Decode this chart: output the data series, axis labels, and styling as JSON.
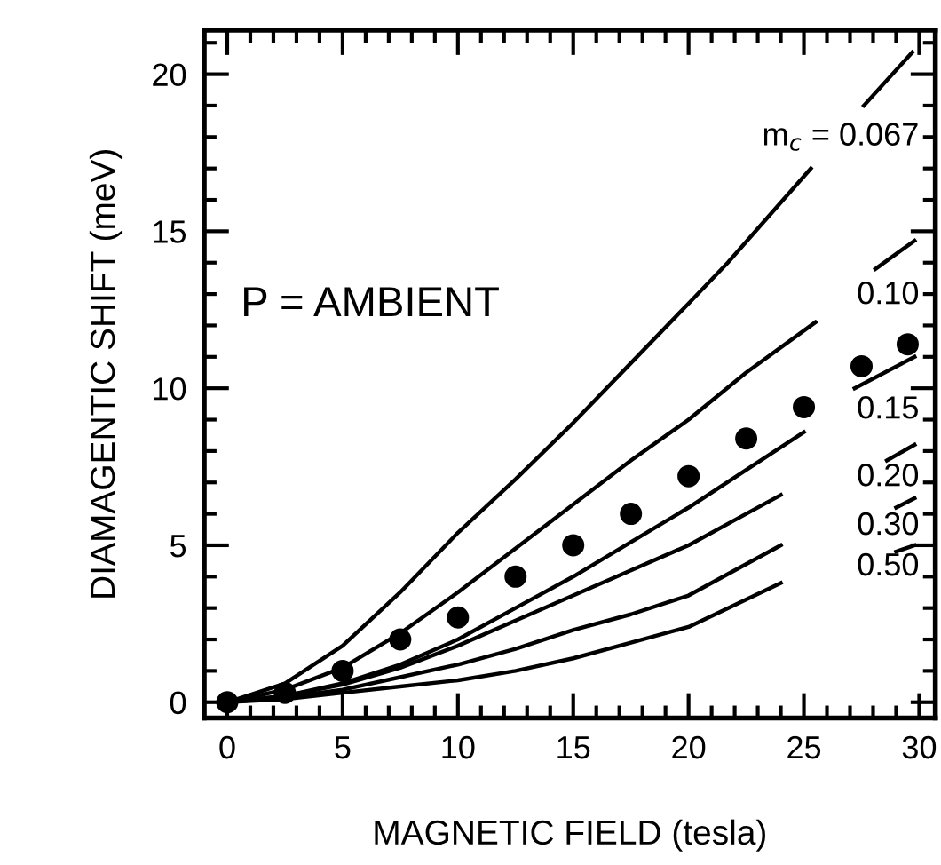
{
  "chart_data": {
    "type": "line",
    "xlabel": "MAGNETIC FIELD (tesla)",
    "ylabel": "DIAMAGENTIC SHIFT (meV)",
    "xlim": [
      -1,
      30.7
    ],
    "ylim": [
      -0.5,
      21.4
    ],
    "xticks": [
      0,
      5,
      10,
      15,
      20,
      25,
      30
    ],
    "yticks": [
      0,
      5,
      10,
      15,
      20
    ],
    "grid": false,
    "legend": "right",
    "line_style": "solid",
    "series": [
      {
        "name": "m$_{c}$ = 0.067",
        "color": "#000000",
        "x": [
          0,
          2.5,
          5,
          7.5,
          10,
          12.5,
          15,
          17.5,
          20,
          21.7,
          23.5,
          25.3,
          26.5,
          27.6,
          29.7
        ],
        "values": [
          0,
          0.6,
          1.8,
          3.5,
          5.4,
          7.1,
          8.9,
          10.8,
          12.7,
          14.0,
          15.5,
          17.0,
          null,
          19.0,
          20.7
        ]
      },
      {
        "name": "0.10",
        "color": "#000000",
        "x": [
          0,
          2.5,
          5,
          7.5,
          10,
          12.5,
          15,
          17.5,
          20,
          22.5,
          25.5,
          26.5,
          28.1,
          29.8
        ],
        "values": [
          0,
          0.4,
          1.1,
          2.2,
          3.5,
          4.9,
          6.3,
          7.7,
          9.0,
          10.5,
          12.1,
          null,
          13.8,
          14.7
        ]
      },
      {
        "name": "0.15",
        "color": "#000000",
        "x": [
          0,
          2.5,
          5,
          7.5,
          10,
          12.5,
          15,
          17.5,
          20,
          22.5,
          25,
          26,
          27.2,
          29.8
        ],
        "values": [
          0,
          0.2,
          0.6,
          1.2,
          2.0,
          3.0,
          4.0,
          5.1,
          6.2,
          7.4,
          8.6,
          null,
          10.0,
          11.0
        ]
      },
      {
        "name": "0.20",
        "color": "#000000",
        "x": [
          0,
          2.5,
          5,
          7.5,
          10,
          12.5,
          15,
          17.5,
          20,
          22,
          24,
          26,
          28.6,
          29.8
        ],
        "values": [
          0,
          0.2,
          0.56,
          1.1,
          1.8,
          2.6,
          3.4,
          4.2,
          5.0,
          5.8,
          6.6,
          null,
          7.7,
          8.2
        ]
      },
      {
        "name": "0.30",
        "color": "#000000",
        "x": [
          0,
          2.5,
          5,
          7.5,
          10,
          12.5,
          15,
          17.5,
          20,
          22,
          24,
          26,
          29,
          29.8
        ],
        "values": [
          0,
          0.15,
          0.4,
          0.8,
          1.2,
          1.7,
          2.3,
          2.8,
          3.4,
          4.2,
          5.0,
          null,
          6.2,
          6.5
        ]
      },
      {
        "name": "0.50",
        "color": "#000000",
        "x": [
          0,
          2.5,
          5,
          7.5,
          10,
          12.5,
          15,
          17.5,
          20,
          22,
          24,
          26,
          29.0,
          29.8
        ],
        "values": [
          0,
          0.1,
          0.3,
          0.5,
          0.7,
          1.0,
          1.4,
          1.9,
          2.4,
          3.1,
          3.8,
          null,
          4.8,
          5.0
        ]
      },
      {
        "type": "scatter",
        "marker": "circle",
        "color": "#000000",
        "x": [
          0,
          2.5,
          5,
          7.5,
          10,
          12.5,
          15,
          17.5,
          20,
          22.5,
          25,
          27.5,
          29.5
        ],
        "values": [
          0,
          0.3,
          1,
          2,
          2.7,
          4,
          5,
          6,
          7.2,
          8.4,
          9.4,
          10.7,
          11.4
        ]
      }
    ],
    "annotations": [
      "P = AMBIENT"
    ]
  }
}
